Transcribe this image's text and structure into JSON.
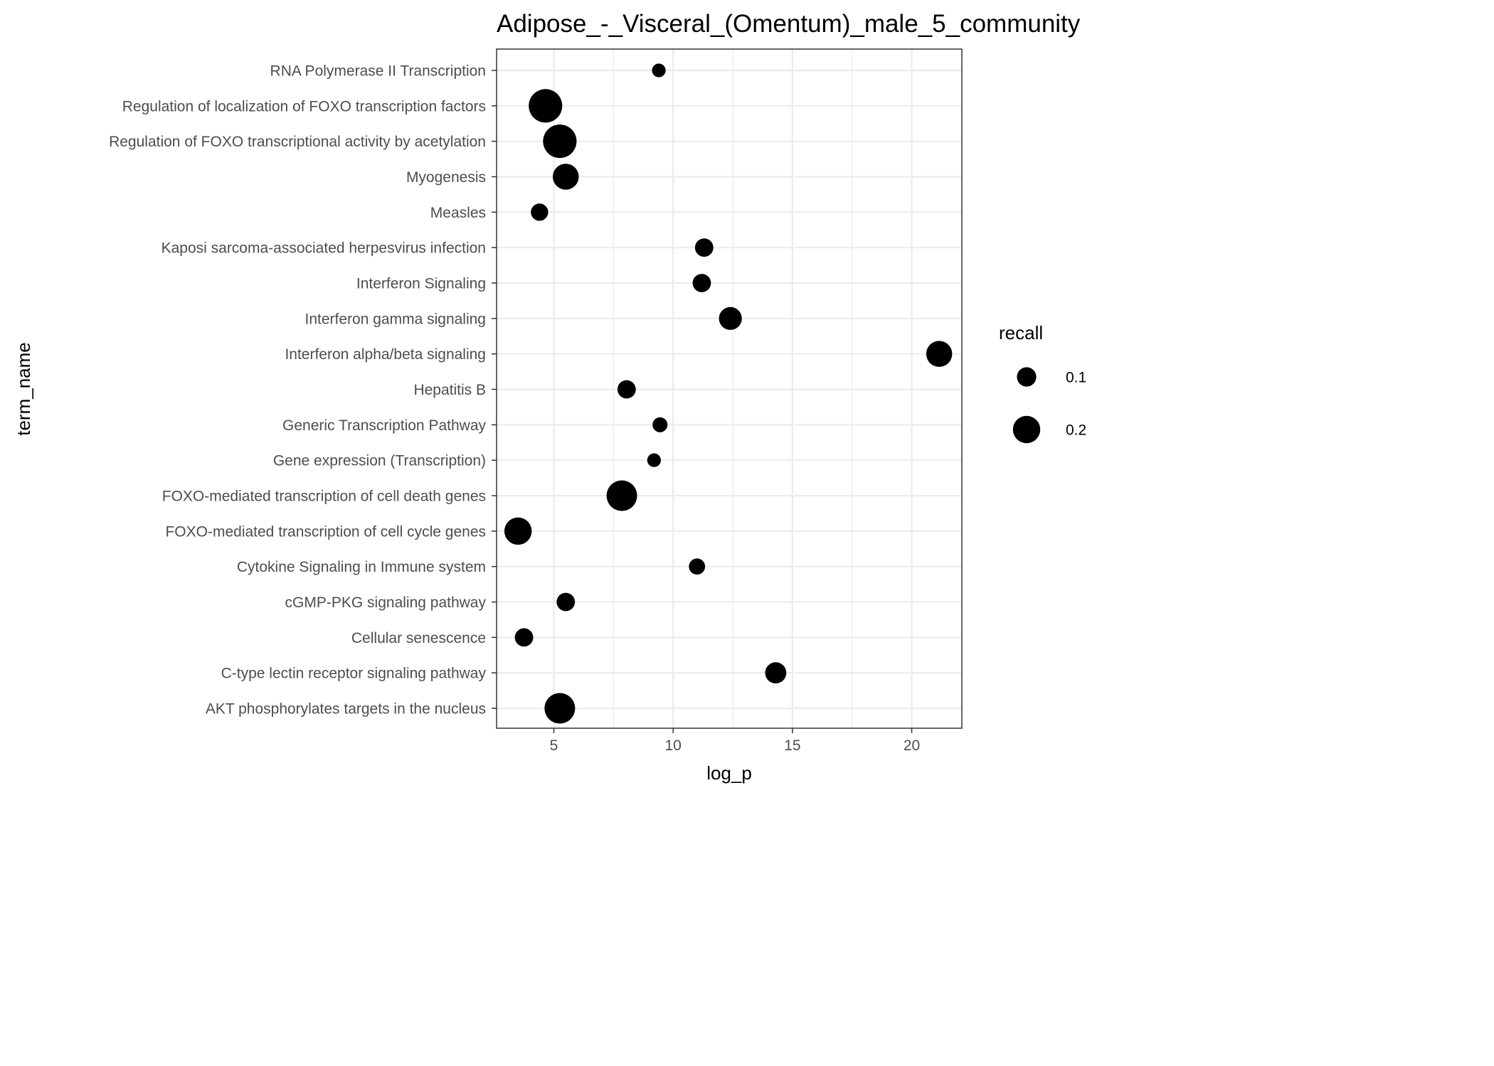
{
  "chart_data": {
    "type": "scatter",
    "title": "Adipose_-_Visceral_(Omentum)_male_5_community",
    "xlabel": "log_p",
    "ylabel": "term_name",
    "xlim": [
      2.6,
      22.1
    ],
    "x_ticks": [
      5,
      10,
      15,
      20
    ],
    "grid": true,
    "categories": [
      "AKT phosphorylates targets in the nucleus",
      "C-type lectin receptor signaling pathway",
      "Cellular senescence",
      "cGMP-PKG signaling pathway",
      "Cytokine Signaling in Immune system",
      "FOXO-mediated transcription of cell cycle genes",
      "FOXO-mediated transcription of cell death genes",
      "Gene expression (Transcription)",
      "Generic Transcription Pathway",
      "Hepatitis B",
      "Interferon alpha/beta signaling",
      "Interferon gamma signaling",
      "Interferon Signaling",
      "Kaposi sarcoma-associated herpesvirus infection",
      "Measles",
      "Myogenesis",
      "Regulation of FOXO transcriptional activity by acetylation",
      "Regulation of localization of FOXO transcription factors",
      "RNA Polymerase II Transcription"
    ],
    "points": [
      {
        "term": "AKT phosphorylates targets in the nucleus",
        "log_p": 5.25,
        "recall": 0.25
      },
      {
        "term": "C-type lectin receptor signaling pathway",
        "log_p": 14.3,
        "recall": 0.12
      },
      {
        "term": "Cellular senescence",
        "log_p": 3.75,
        "recall": 0.09
      },
      {
        "term": "cGMP-PKG signaling pathway",
        "log_p": 5.5,
        "recall": 0.09
      },
      {
        "term": "Cytokine Signaling in Immune system",
        "log_p": 11.0,
        "recall": 0.07
      },
      {
        "term": "FOXO-mediated transcription of cell cycle genes",
        "log_p": 3.5,
        "recall": 0.2
      },
      {
        "term": "FOXO-mediated transcription of cell death genes",
        "log_p": 7.85,
        "recall": 0.25
      },
      {
        "term": "Gene expression (Transcription)",
        "log_p": 9.2,
        "recall": 0.05
      },
      {
        "term": "Generic Transcription Pathway",
        "log_p": 9.45,
        "recall": 0.06
      },
      {
        "term": "Hepatitis B",
        "log_p": 8.05,
        "recall": 0.09
      },
      {
        "term": "Interferon alpha/beta signaling",
        "log_p": 21.15,
        "recall": 0.18
      },
      {
        "term": "Interferon gamma signaling",
        "log_p": 12.4,
        "recall": 0.14
      },
      {
        "term": "Interferon Signaling",
        "log_p": 11.2,
        "recall": 0.09
      },
      {
        "term": "Kaposi sarcoma-associated herpesvirus infection",
        "log_p": 11.3,
        "recall": 0.09
      },
      {
        "term": "Measles",
        "log_p": 4.4,
        "recall": 0.08
      },
      {
        "term": "Myogenesis",
        "log_p": 5.5,
        "recall": 0.18
      },
      {
        "term": "Regulation of FOXO transcriptional activity by acetylation",
        "log_p": 5.25,
        "recall": 0.3
      },
      {
        "term": "Regulation of localization of FOXO transcription factors",
        "log_p": 4.65,
        "recall": 0.3
      },
      {
        "term": "RNA Polymerase II Transcription",
        "log_p": 9.4,
        "recall": 0.05
      }
    ],
    "size_legend": {
      "title": "recall",
      "placement": "right",
      "items": [
        {
          "label": "0.1",
          "value": 0.1
        },
        {
          "label": "0.2",
          "value": 0.2
        }
      ]
    },
    "colors": {
      "point": "#000000",
      "grid": "#ebebeb",
      "panel_border": "#333333",
      "tick_text": "#4d4d4d",
      "background": "#ffffff"
    }
  }
}
